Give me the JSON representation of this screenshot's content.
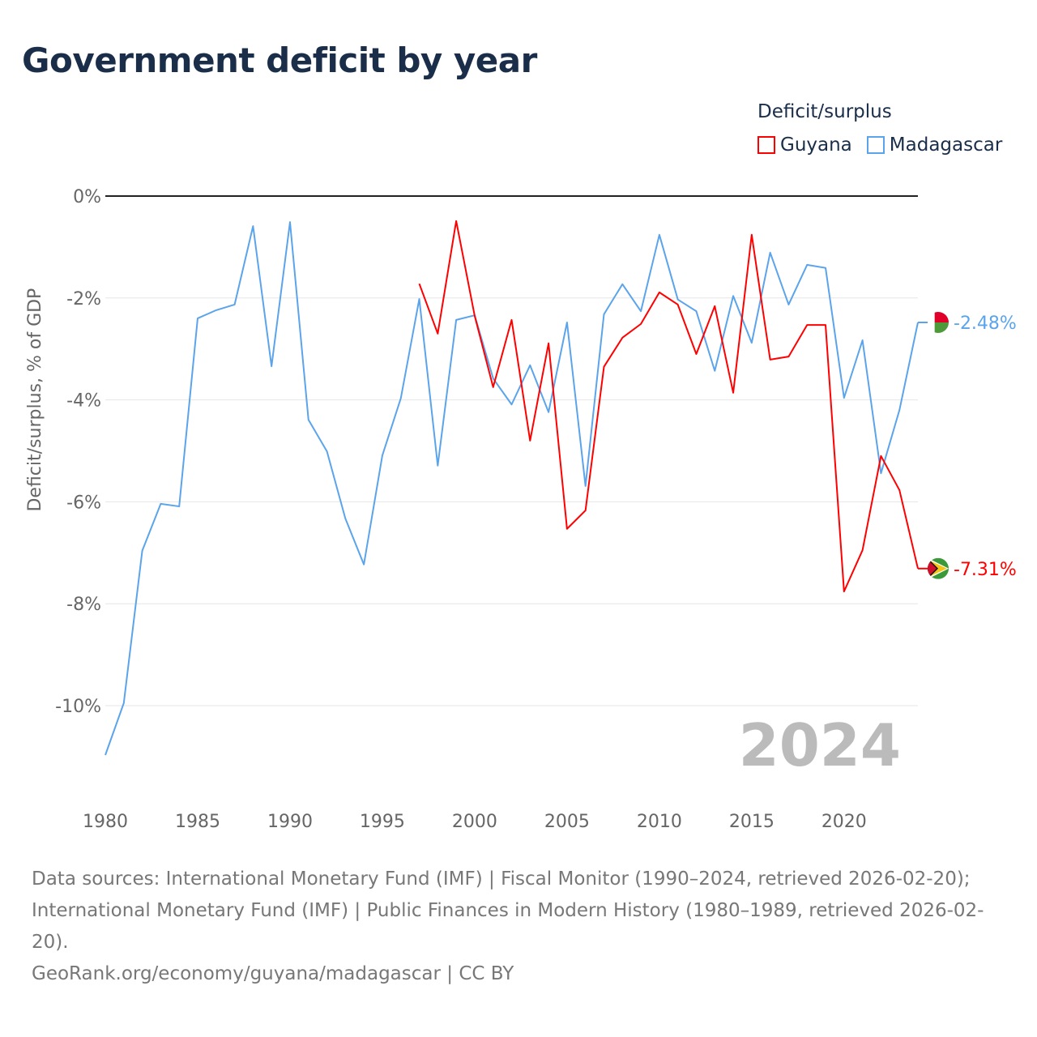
{
  "title": "Government deficit by year",
  "legend": {
    "title": "Deficit/surplus",
    "items": [
      {
        "name": "Guyana",
        "color": "#ff0000"
      },
      {
        "name": "Madagascar",
        "color": "#5ba4ec"
      }
    ]
  },
  "footer": {
    "sources": "Data sources: International Monetary Fund (IMF) | Fiscal Monitor (1990–2024, retrieved 2026-02-20); International Monetary Fund (IMF) | Public Finances in Modern History (1980–1989, retrieved 2026-02-20).",
    "credit": "GeoRank.org/economy/guyana/madagascar | CC BY"
  },
  "chart_data": {
    "type": "line",
    "title": "Government deficit by year",
    "xlabel": "",
    "ylabel": "Deficit/surplus, % of GDP",
    "xlim": [
      1980,
      2024
    ],
    "ylim": [
      -11.2,
      0
    ],
    "x_ticks": [
      1980,
      1985,
      1990,
      1995,
      2000,
      2005,
      2010,
      2015,
      2020
    ],
    "y_ticks": [
      0,
      -2,
      -4,
      -6,
      -8,
      -10
    ],
    "y_tick_labels": [
      "0%",
      "-2%",
      "-4%",
      "-6%",
      "-8%",
      "-10%"
    ],
    "year_watermark": "2024",
    "series": [
      {
        "name": "Madagascar",
        "color": "#5ba4ec",
        "end_label": "-2.48%",
        "x": [
          1980,
          1981,
          1982,
          1983,
          1984,
          1985,
          1986,
          1987,
          1988,
          1989,
          1990,
          1991,
          1992,
          1993,
          1994,
          1995,
          1996,
          1997,
          1998,
          1999,
          2000,
          2001,
          2002,
          2003,
          2004,
          2005,
          2006,
          2007,
          2008,
          2009,
          2010,
          2011,
          2012,
          2013,
          2014,
          2015,
          2016,
          2017,
          2018,
          2019,
          2020,
          2021,
          2022,
          2023,
          2024
        ],
        "values": [
          -10.97,
          -9.95,
          -6.96,
          -6.04,
          -6.09,
          -2.4,
          -2.24,
          -2.13,
          -0.59,
          -3.34,
          -0.51,
          -4.39,
          -5.01,
          -6.33,
          -7.23,
          -5.09,
          -3.97,
          -2.02,
          -5.29,
          -2.43,
          -2.34,
          -3.58,
          -4.09,
          -3.32,
          -4.24,
          -2.48,
          -5.69,
          -2.32,
          -1.73,
          -2.26,
          -0.76,
          -2.03,
          -2.26,
          -3.43,
          -1.96,
          -2.88,
          -1.11,
          -2.13,
          -1.35,
          -1.41,
          -3.96,
          -2.83,
          -5.44,
          -4.2,
          -2.48
        ]
      },
      {
        "name": "Guyana",
        "color": "#ff0000",
        "end_label": "-7.31%",
        "x": [
          1997,
          1998,
          1999,
          2000,
          2001,
          2002,
          2003,
          2004,
          2005,
          2006,
          2007,
          2008,
          2009,
          2010,
          2011,
          2012,
          2013,
          2014,
          2015,
          2016,
          2017,
          2018,
          2019,
          2020,
          2021,
          2022,
          2023,
          2024
        ],
        "values": [
          -1.72,
          -2.7,
          -0.49,
          -2.35,
          -3.75,
          -2.43,
          -4.8,
          -2.89,
          -6.53,
          -6.17,
          -3.35,
          -2.78,
          -2.51,
          -1.89,
          -2.13,
          -3.1,
          -2.16,
          -3.86,
          -0.76,
          -3.21,
          -3.15,
          -2.53,
          -2.53,
          -7.76,
          -6.95,
          -5.1,
          -5.77,
          -7.31
        ]
      }
    ]
  }
}
